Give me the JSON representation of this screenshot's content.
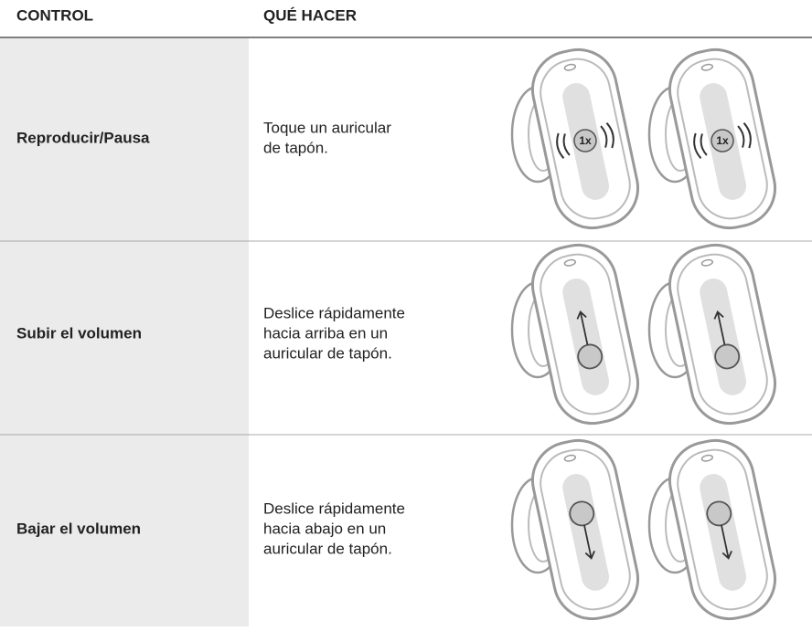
{
  "header": {
    "columns": [
      "CONTROL",
      "QUÉ HACER"
    ]
  },
  "rows": [
    {
      "control": "Reproducir/Pausa",
      "instruction": [
        "Toque un auricular",
        "de tapón."
      ],
      "gesture_label": "1x"
    },
    {
      "control": "Subir el volumen",
      "instruction": [
        "Deslice rápidamente",
        "hacia arriba en un",
        "auricular de tapón."
      ]
    },
    {
      "control": "Bajar el volumen",
      "instruction": [
        "Deslice rápidamente",
        "hacia abajo en un",
        "auricular de tapón."
      ]
    }
  ]
}
